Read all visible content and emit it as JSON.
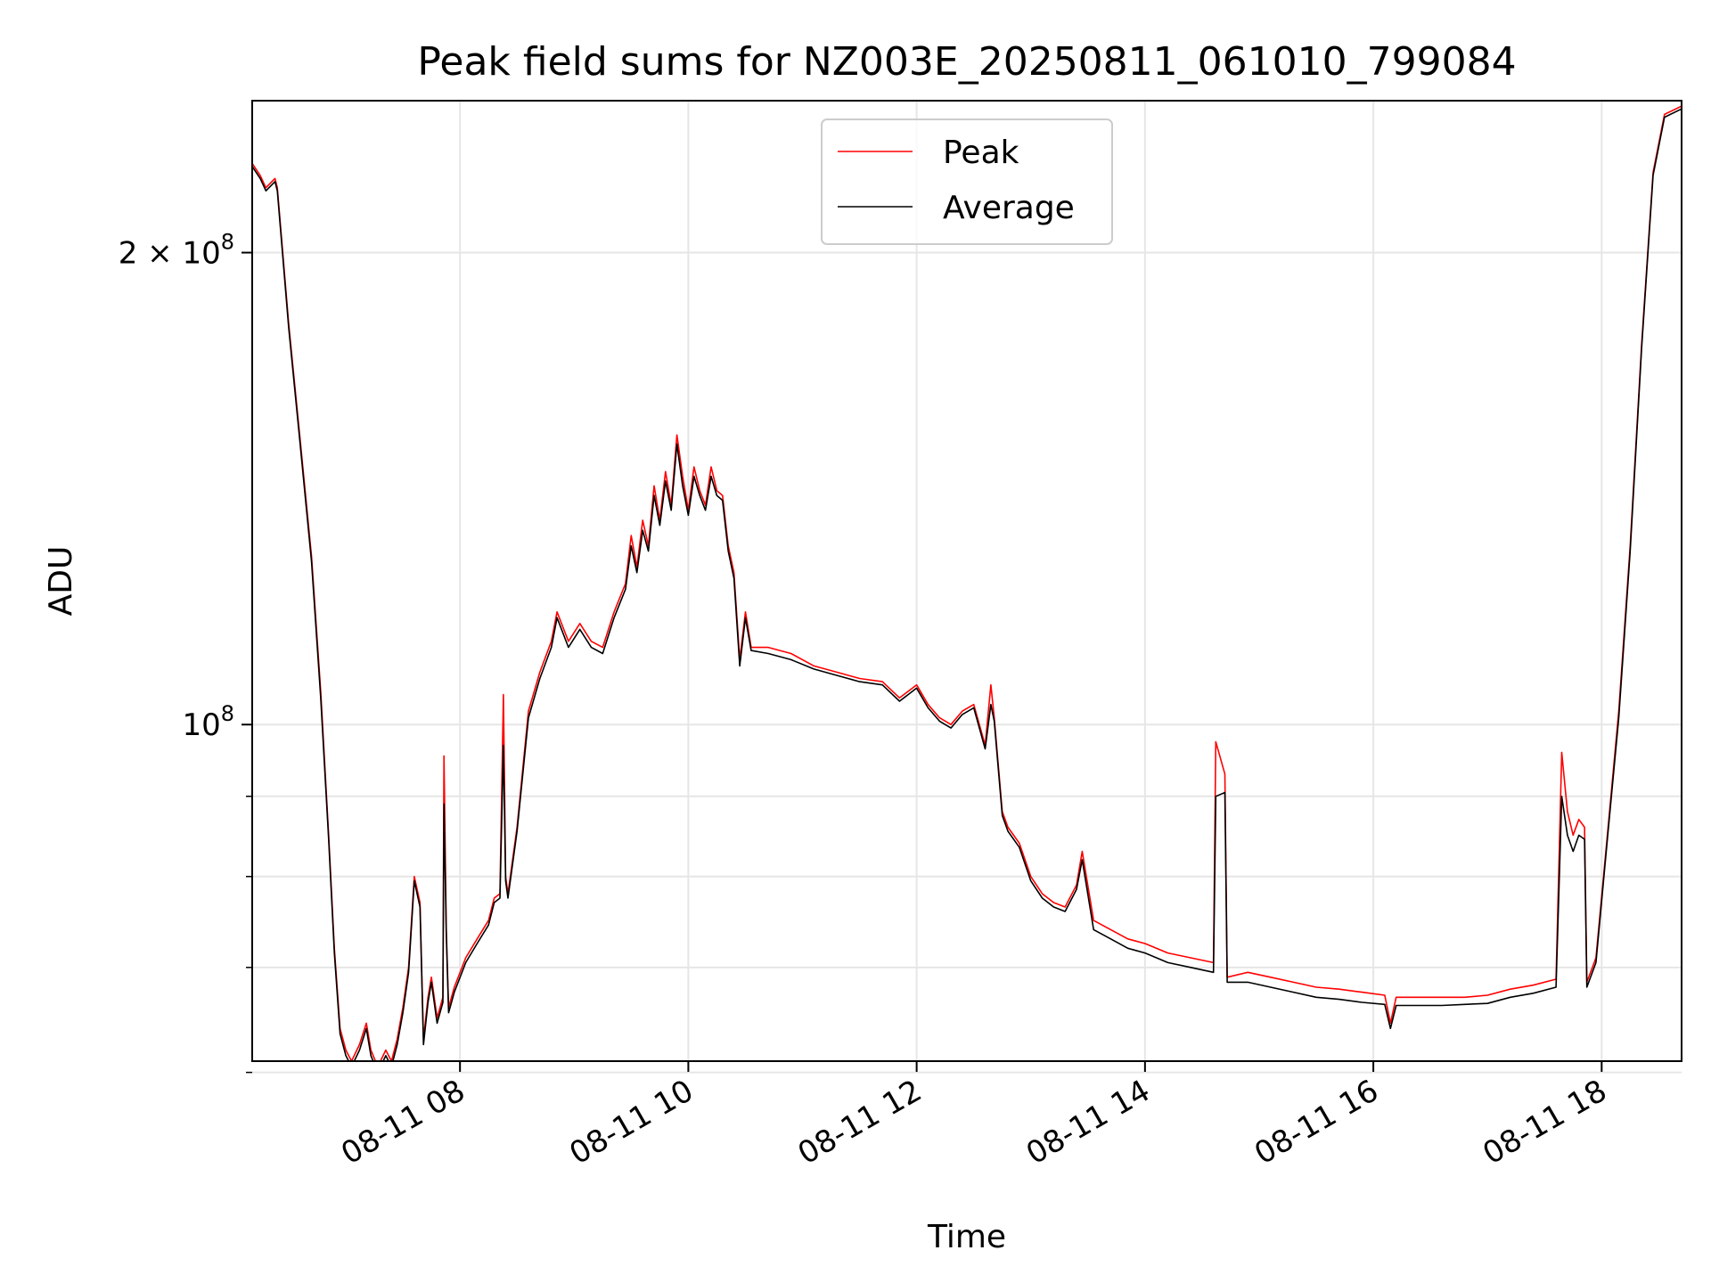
{
  "chart_data": {
    "type": "line",
    "title": "Peak field sums for NZ003E_20250811_061010_799084",
    "xlabel": "Time",
    "ylabel": "ADU",
    "yscale": "log",
    "xlim_hours": [
      6.18,
      18.7
    ],
    "ylim": [
      61000000,
      250000000
    ],
    "grid": true,
    "legend_position": "top-center",
    "x_ticks": [
      {
        "value": 8,
        "label": "08-11 08"
      },
      {
        "value": 10,
        "label": "08-11 10"
      },
      {
        "value": 12,
        "label": "08-11 12"
      },
      {
        "value": 14,
        "label": "08-11 14"
      },
      {
        "value": 16,
        "label": "08-11 16"
      },
      {
        "value": 18,
        "label": "08-11 18"
      }
    ],
    "y_major_ticks": [
      {
        "value": 100000000,
        "base": "10",
        "exp": "8",
        "coef": ""
      },
      {
        "value": 200000000,
        "base": "10",
        "exp": "8",
        "coef": "2 × "
      }
    ],
    "y_minor_ticks": [
      60000000,
      70000000,
      80000000,
      90000000
    ],
    "colors": {
      "peak": "#ff0000",
      "average": "#000000"
    },
    "series": [
      {
        "name": "Peak",
        "key": "peak",
        "points": [
          [
            6.18,
            228000000
          ],
          [
            6.25,
            224000000
          ],
          [
            6.3,
            220000000
          ],
          [
            6.38,
            223000000
          ],
          [
            6.4,
            220000000
          ],
          [
            6.5,
            180000000
          ],
          [
            6.6,
            152000000
          ],
          [
            6.7,
            128000000
          ],
          [
            6.78,
            105000000
          ],
          [
            6.85,
            85000000
          ],
          [
            6.9,
            72000000
          ],
          [
            6.95,
            64000000
          ],
          [
            7.0,
            62000000
          ],
          [
            7.05,
            61000000
          ],
          [
            7.12,
            62500000
          ],
          [
            7.18,
            64500000
          ],
          [
            7.22,
            62000000
          ],
          [
            7.28,
            60500000
          ],
          [
            7.35,
            62000000
          ],
          [
            7.4,
            61000000
          ],
          [
            7.45,
            63000000
          ],
          [
            7.5,
            66000000
          ],
          [
            7.55,
            70000000
          ],
          [
            7.6,
            80000000
          ],
          [
            7.65,
            77000000
          ],
          [
            7.68,
            63000000
          ],
          [
            7.72,
            67000000
          ],
          [
            7.75,
            69000000
          ],
          [
            7.8,
            65000000
          ],
          [
            7.85,
            67000000
          ],
          [
            7.86,
            95500000
          ],
          [
            7.88,
            74000000
          ],
          [
            7.9,
            66000000
          ],
          [
            7.95,
            68000000
          ],
          [
            8.05,
            71000000
          ],
          [
            8.15,
            73000000
          ],
          [
            8.25,
            75000000
          ],
          [
            8.3,
            77500000
          ],
          [
            8.35,
            78000000
          ],
          [
            8.38,
            104500000
          ],
          [
            8.4,
            80000000
          ],
          [
            8.42,
            78000000
          ],
          [
            8.5,
            86000000
          ],
          [
            8.6,
            102000000
          ],
          [
            8.7,
            108000000
          ],
          [
            8.8,
            113000000
          ],
          [
            8.85,
            118000000
          ],
          [
            8.95,
            113000000
          ],
          [
            9.05,
            116000000
          ],
          [
            9.15,
            113000000
          ],
          [
            9.25,
            112000000
          ],
          [
            9.35,
            118000000
          ],
          [
            9.45,
            123000000
          ],
          [
            9.5,
            132000000
          ],
          [
            9.55,
            126000000
          ],
          [
            9.6,
            135000000
          ],
          [
            9.65,
            130000000
          ],
          [
            9.7,
            142000000
          ],
          [
            9.75,
            135000000
          ],
          [
            9.8,
            145000000
          ],
          [
            9.85,
            138000000
          ],
          [
            9.9,
            153000000
          ],
          [
            9.95,
            144000000
          ],
          [
            10.0,
            137000000
          ],
          [
            10.05,
            146000000
          ],
          [
            10.1,
            141000000
          ],
          [
            10.15,
            138000000
          ],
          [
            10.2,
            146000000
          ],
          [
            10.25,
            141000000
          ],
          [
            10.3,
            140000000
          ],
          [
            10.35,
            130000000
          ],
          [
            10.4,
            125000000
          ],
          [
            10.45,
            110000000
          ],
          [
            10.5,
            118000000
          ],
          [
            10.55,
            112000000
          ],
          [
            10.7,
            112000000
          ],
          [
            10.9,
            111000000
          ],
          [
            11.1,
            109000000
          ],
          [
            11.3,
            108000000
          ],
          [
            11.5,
            107000000
          ],
          [
            11.7,
            106500000
          ],
          [
            11.85,
            104000000
          ],
          [
            12.0,
            106000000
          ],
          [
            12.1,
            103000000
          ],
          [
            12.2,
            101000000
          ],
          [
            12.3,
            100000000
          ],
          [
            12.4,
            102000000
          ],
          [
            12.5,
            103000000
          ],
          [
            12.6,
            97000000
          ],
          [
            12.65,
            106000000
          ],
          [
            12.68,
            101000000
          ],
          [
            12.75,
            88000000
          ],
          [
            12.8,
            86000000
          ],
          [
            12.9,
            84000000
          ],
          [
            13.0,
            80000000
          ],
          [
            13.1,
            78000000
          ],
          [
            13.2,
            77000000
          ],
          [
            13.3,
            76500000
          ],
          [
            13.4,
            79000000
          ],
          [
            13.45,
            83000000
          ],
          [
            13.55,
            75000000
          ],
          [
            13.7,
            74000000
          ],
          [
            13.85,
            73000000
          ],
          [
            14.0,
            72500000
          ],
          [
            14.2,
            71500000
          ],
          [
            14.4,
            71000000
          ],
          [
            14.6,
            70500000
          ],
          [
            14.62,
            97500000
          ],
          [
            14.7,
            93000000
          ],
          [
            14.72,
            69000000
          ],
          [
            14.9,
            69500000
          ],
          [
            15.1,
            69000000
          ],
          [
            15.3,
            68500000
          ],
          [
            15.5,
            68000000
          ],
          [
            15.7,
            67800000
          ],
          [
            15.9,
            67500000
          ],
          [
            16.1,
            67200000
          ],
          [
            16.15,
            64500000
          ],
          [
            16.2,
            67000000
          ],
          [
            16.4,
            67000000
          ],
          [
            16.6,
            67000000
          ],
          [
            16.8,
            67000000
          ],
          [
            17.0,
            67200000
          ],
          [
            17.2,
            67800000
          ],
          [
            17.4,
            68200000
          ],
          [
            17.6,
            68800000
          ],
          [
            17.65,
            96000000
          ],
          [
            17.7,
            88000000
          ],
          [
            17.75,
            85000000
          ],
          [
            17.8,
            87000000
          ],
          [
            17.85,
            86000000
          ],
          [
            17.87,
            68500000
          ],
          [
            17.95,
            71000000
          ],
          [
            18.05,
            85000000
          ],
          [
            18.15,
            102000000
          ],
          [
            18.25,
            130000000
          ],
          [
            18.35,
            175000000
          ],
          [
            18.45,
            225000000
          ],
          [
            18.55,
            245000000
          ],
          [
            18.7,
            248000000
          ]
        ]
      },
      {
        "name": "Average",
        "key": "average",
        "points": [
          [
            6.18,
            227000000
          ],
          [
            6.25,
            223000000
          ],
          [
            6.3,
            219000000
          ],
          [
            6.38,
            222000000
          ],
          [
            6.4,
            219000000
          ],
          [
            6.5,
            179000000
          ],
          [
            6.6,
            151000000
          ],
          [
            6.7,
            127000000
          ],
          [
            6.78,
            104000000
          ],
          [
            6.85,
            84500000
          ],
          [
            6.9,
            71500000
          ],
          [
            6.95,
            63500000
          ],
          [
            7.0,
            61500000
          ],
          [
            7.05,
            60500000
          ],
          [
            7.12,
            62000000
          ],
          [
            7.18,
            64000000
          ],
          [
            7.22,
            61500000
          ],
          [
            7.28,
            60000000
          ],
          [
            7.35,
            61500000
          ],
          [
            7.4,
            60500000
          ],
          [
            7.45,
            62500000
          ],
          [
            7.5,
            65500000
          ],
          [
            7.55,
            69500000
          ],
          [
            7.6,
            79500000
          ],
          [
            7.65,
            76500000
          ],
          [
            7.68,
            62500000
          ],
          [
            7.72,
            66500000
          ],
          [
            7.75,
            68500000
          ],
          [
            7.8,
            64500000
          ],
          [
            7.85,
            66500000
          ],
          [
            7.86,
            89000000
          ],
          [
            7.88,
            73500000
          ],
          [
            7.9,
            65500000
          ],
          [
            7.95,
            67500000
          ],
          [
            8.05,
            70500000
          ],
          [
            8.15,
            72500000
          ],
          [
            8.25,
            74500000
          ],
          [
            8.3,
            77000000
          ],
          [
            8.35,
            77500000
          ],
          [
            8.38,
            97000000
          ],
          [
            8.4,
            79500000
          ],
          [
            8.42,
            77500000
          ],
          [
            8.5,
            85500000
          ],
          [
            8.6,
            101000000
          ],
          [
            8.7,
            107000000
          ],
          [
            8.8,
            112000000
          ],
          [
            8.85,
            117000000
          ],
          [
            8.95,
            112000000
          ],
          [
            9.05,
            115000000
          ],
          [
            9.15,
            112000000
          ],
          [
            9.25,
            111000000
          ],
          [
            9.35,
            117000000
          ],
          [
            9.45,
            122000000
          ],
          [
            9.5,
            130000000
          ],
          [
            9.55,
            125000000
          ],
          [
            9.6,
            133000000
          ],
          [
            9.65,
            129000000
          ],
          [
            9.7,
            140000000
          ],
          [
            9.75,
            134000000
          ],
          [
            9.8,
            143000000
          ],
          [
            9.85,
            137000000
          ],
          [
            9.9,
            151000000
          ],
          [
            9.95,
            142000000
          ],
          [
            10.0,
            136000000
          ],
          [
            10.05,
            144000000
          ],
          [
            10.1,
            140000000
          ],
          [
            10.15,
            137000000
          ],
          [
            10.2,
            144000000
          ],
          [
            10.25,
            140000000
          ],
          [
            10.3,
            139000000
          ],
          [
            10.35,
            129000000
          ],
          [
            10.4,
            124000000
          ],
          [
            10.45,
            109000000
          ],
          [
            10.5,
            117000000
          ],
          [
            10.55,
            111500000
          ],
          [
            10.7,
            111000000
          ],
          [
            10.9,
            110000000
          ],
          [
            11.1,
            108500000
          ],
          [
            11.3,
            107500000
          ],
          [
            11.5,
            106500000
          ],
          [
            11.7,
            106000000
          ],
          [
            11.85,
            103500000
          ],
          [
            12.0,
            105500000
          ],
          [
            12.1,
            102500000
          ],
          [
            12.2,
            100500000
          ],
          [
            12.3,
            99500000
          ],
          [
            12.4,
            101500000
          ],
          [
            12.5,
            102500000
          ],
          [
            12.6,
            96500000
          ],
          [
            12.65,
            103000000
          ],
          [
            12.68,
            100500000
          ],
          [
            12.75,
            87500000
          ],
          [
            12.8,
            85500000
          ],
          [
            12.9,
            83500000
          ],
          [
            13.0,
            79500000
          ],
          [
            13.1,
            77500000
          ],
          [
            13.2,
            76500000
          ],
          [
            13.3,
            76000000
          ],
          [
            13.4,
            78500000
          ],
          [
            13.45,
            82000000
          ],
          [
            13.55,
            74000000
          ],
          [
            13.7,
            73000000
          ],
          [
            13.85,
            72000000
          ],
          [
            14.0,
            71500000
          ],
          [
            14.2,
            70500000
          ],
          [
            14.4,
            70000000
          ],
          [
            14.6,
            69500000
          ],
          [
            14.62,
            90000000
          ],
          [
            14.7,
            90500000
          ],
          [
            14.72,
            68500000
          ],
          [
            14.9,
            68500000
          ],
          [
            15.1,
            68000000
          ],
          [
            15.3,
            67500000
          ],
          [
            15.5,
            67000000
          ],
          [
            15.7,
            66800000
          ],
          [
            15.9,
            66500000
          ],
          [
            16.1,
            66300000
          ],
          [
            16.15,
            64000000
          ],
          [
            16.2,
            66200000
          ],
          [
            16.4,
            66200000
          ],
          [
            16.6,
            66200000
          ],
          [
            16.8,
            66300000
          ],
          [
            17.0,
            66400000
          ],
          [
            17.2,
            67000000
          ],
          [
            17.4,
            67400000
          ],
          [
            17.6,
            68000000
          ],
          [
            17.65,
            90000000
          ],
          [
            17.7,
            85000000
          ],
          [
            17.75,
            83000000
          ],
          [
            17.8,
            85000000
          ],
          [
            17.85,
            84500000
          ],
          [
            17.87,
            68000000
          ],
          [
            17.95,
            70500000
          ],
          [
            18.05,
            84500000
          ],
          [
            18.15,
            101000000
          ],
          [
            18.25,
            129000000
          ],
          [
            18.35,
            174000000
          ],
          [
            18.45,
            224000000
          ],
          [
            18.55,
            244000000
          ],
          [
            18.7,
            247000000
          ]
        ]
      }
    ]
  }
}
